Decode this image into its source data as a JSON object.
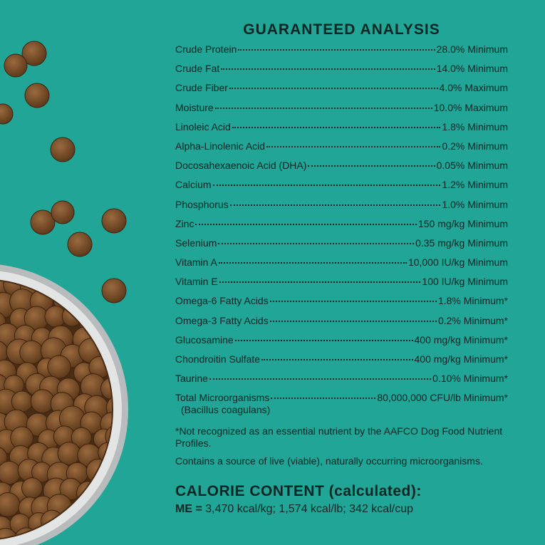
{
  "title": "GUARANTEED ANALYSIS",
  "rows": [
    {
      "name": "Crude Protein",
      "value": "28.0% Minimum"
    },
    {
      "name": "Crude Fat",
      "value": "14.0% Minimum"
    },
    {
      "name": "Crude Fiber",
      "value": "4.0% Maximum"
    },
    {
      "name": "Moisture",
      "value": "10.0% Maximum"
    },
    {
      "name": "Linoleic Acid",
      "value": "1.8% Minimum"
    },
    {
      "name": "Alpha-Linolenic Acid",
      "value": "0.2% Minimum"
    },
    {
      "name": "Docosahexaenoic Acid (DHA)",
      "value": "0.05% Minimum"
    },
    {
      "name": "Calcium",
      "value": "1.2% Minimum"
    },
    {
      "name": "Phosphorus",
      "value": "1.0% Minimum"
    },
    {
      "name": "Zinc",
      "value": "150 mg/kg Minimum"
    },
    {
      "name": "Selenium",
      "value": "0.35 mg/kg Minimum"
    },
    {
      "name": "Vitamin A",
      "value": "10,000 IU/kg Minimum"
    },
    {
      "name": "Vitamin E",
      "value": "100 IU/kg Minimum"
    },
    {
      "name": "Omega-6 Fatty Acids",
      "value": "1.8% Minimum*"
    },
    {
      "name": "Omega-3 Fatty Acids",
      "value": "0.2% Minimum*"
    },
    {
      "name": "Glucosamine",
      "value": "400 mg/kg Minimum*"
    },
    {
      "name": "Chondroitin Sulfate",
      "value": "400 mg/kg Minimum*"
    },
    {
      "name": "Taurine",
      "value": "0.10% Minimum*"
    },
    {
      "name": "Total Microorganisms",
      "value": "80,000,000 CFU/lb Minimum*"
    }
  ],
  "last_row_note": "(Bacillus coagulans)",
  "footnote": "*Not recognized as an essential nutrient by the AAFCO Dog Food Nutrient Profiles.",
  "note": "Contains a source of live (viable), naturally occurring microorganisms.",
  "calorie": {
    "title": "CALORIE CONTENT (calculated):",
    "label": "ME =",
    "text": "3,470 kcal/kg; 1,574 kcal/lb; 342 kcal/cup"
  }
}
